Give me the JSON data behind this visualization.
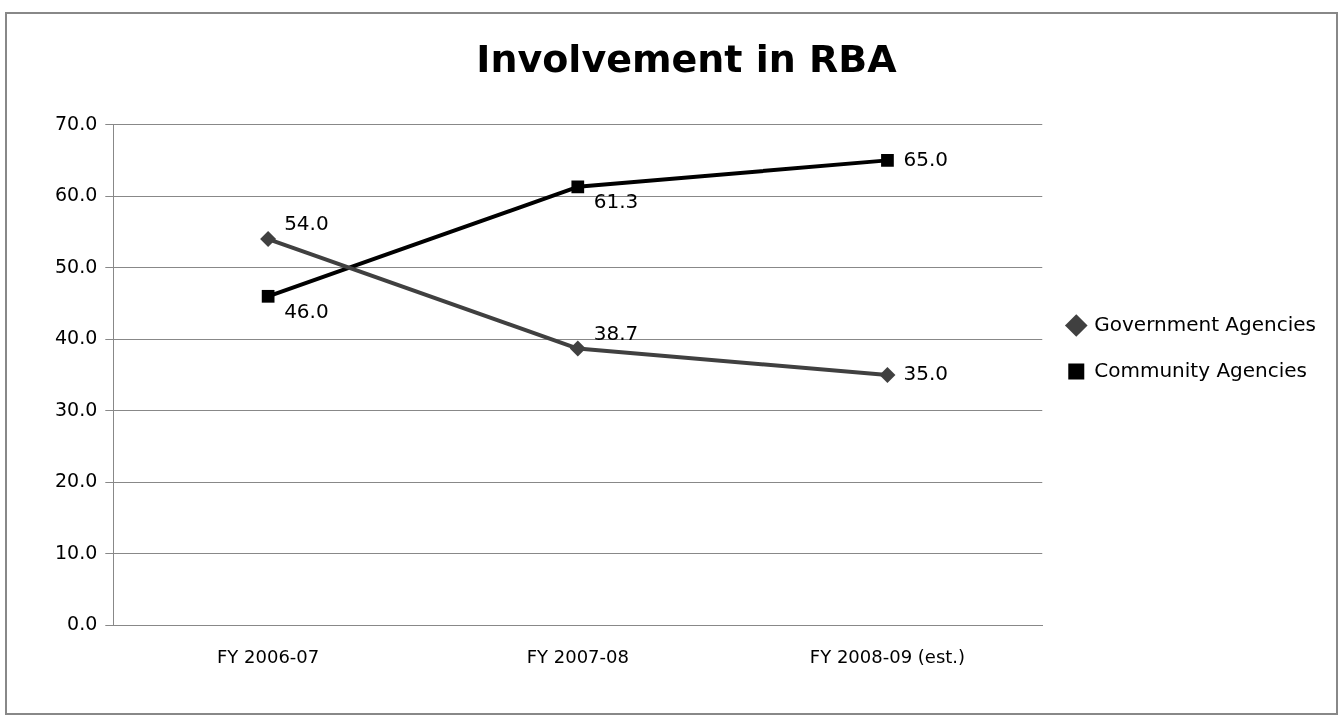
{
  "chart_data": {
    "type": "line",
    "title": "Involvement in RBA",
    "categories": [
      "FY 2006-07",
      "FY 2007-08",
      "FY 2008-09 (est.)"
    ],
    "series": [
      {
        "name": "Government Agencies",
        "color": "#404040",
        "marker": "diamond",
        "values": [
          54.0,
          38.7,
          35.0
        ],
        "value_labels": [
          "54.0",
          "38.7",
          "35.0"
        ]
      },
      {
        "name": "Community Agencies",
        "color": "#000000",
        "marker": "square",
        "values": [
          46.0,
          61.3,
          65.0
        ],
        "value_labels": [
          "46.0",
          "61.3",
          "65.0"
        ]
      }
    ],
    "ylim": [
      0,
      70
    ],
    "yticks": [
      {
        "value": 0,
        "label": "0.0"
      },
      {
        "value": 10,
        "label": "10.0"
      },
      {
        "value": 20,
        "label": "20.0"
      },
      {
        "value": 30,
        "label": "30.0"
      },
      {
        "value": 40,
        "label": "40.0"
      },
      {
        "value": 50,
        "label": "50.0"
      },
      {
        "value": 60,
        "label": "60.0"
      },
      {
        "value": 70,
        "label": "70.0"
      }
    ],
    "grid": "y",
    "legend": "right",
    "line_style": "solid"
  }
}
